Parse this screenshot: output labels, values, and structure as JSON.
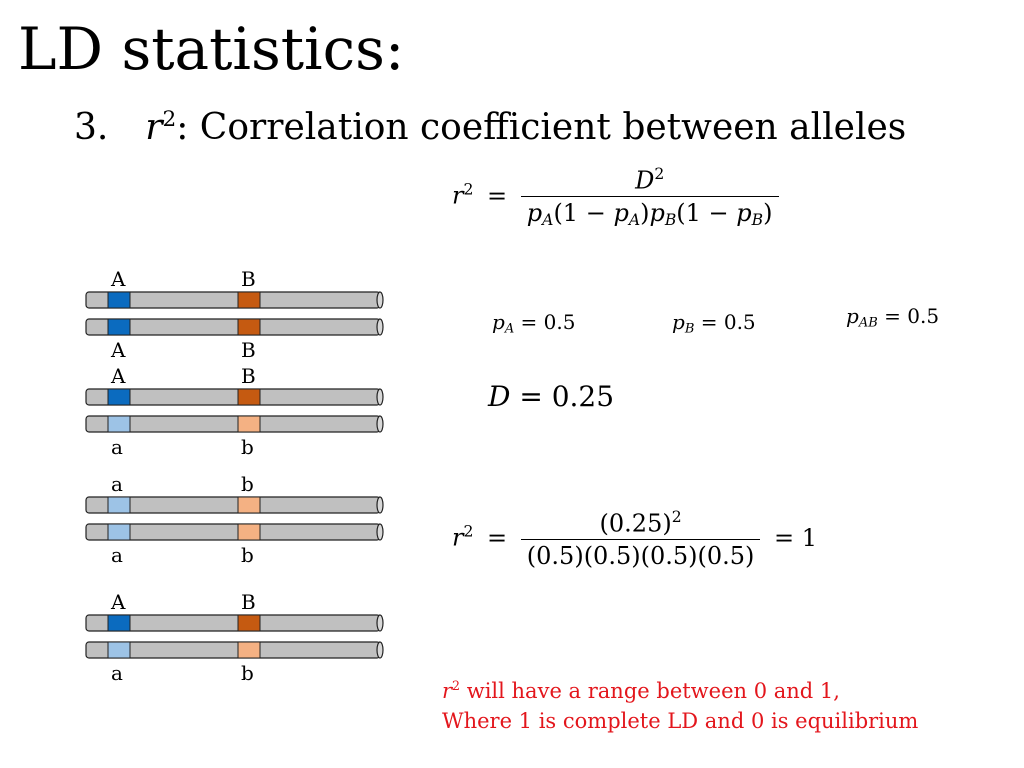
{
  "title": "LD statistics:",
  "subtitle": {
    "number": "3.",
    "symbol": "r",
    "exponent": "2",
    "text": ": Correlation coefficient between alleles"
  },
  "formula": {
    "lhs_var": "r",
    "lhs_exp": "2",
    "equals": "=",
    "num_var": "D",
    "num_exp": "2",
    "den": {
      "p1": "p",
      "s1": "A",
      "t1": "(1 − ",
      "p2": "p",
      "s2": "A",
      "t2": ")",
      "p3": "p",
      "s3": "B",
      "t3": "(1 − ",
      "p4": "p",
      "s4": "B",
      "t4": ")"
    }
  },
  "values": {
    "pA": {
      "var": "p",
      "sub": "A",
      "rest": " = 0.5"
    },
    "pB": {
      "var": "p",
      "sub": "B",
      "rest": " = 0.5"
    },
    "pAB": {
      "var": "p",
      "sub": "AB",
      "rest": " = 0.5"
    },
    "D": {
      "var": "D",
      "rest": " = 0.25"
    }
  },
  "calc": {
    "lhs_var": "r",
    "lhs_exp": "2",
    "equals": "=",
    "num": "(0.25)",
    "num_exp": "2",
    "den": "(0.5)(0.5)(0.5)(0.5)",
    "result": "= 1"
  },
  "note": {
    "symbol": "r",
    "exponent": "2",
    "line1": " will have a range between 0 and 1,",
    "line2": "Where 1 is complete LD and 0 is equilibrium"
  },
  "colors": {
    "dark_blue": "#0b6bbf",
    "light_blue": "#9dc3e6",
    "dark_orange": "#c55a11",
    "light_orange": "#f4b183",
    "chromosome": "#c0c0c0",
    "note": "#e3161c"
  },
  "haplotype_groups": [
    {
      "top_labels": [
        "A",
        "B"
      ],
      "bottom_labels": [
        "A",
        "B"
      ],
      "chrom1": [
        "A",
        "B"
      ],
      "chrom2": [
        "A",
        "B"
      ]
    },
    {
      "top_labels": [
        "A",
        "B"
      ],
      "bottom_labels": [
        "a",
        "b"
      ],
      "chrom1": [
        "A",
        "B"
      ],
      "chrom2": [
        "a",
        "b"
      ]
    },
    {
      "top_labels": [
        "a",
        "b"
      ],
      "bottom_labels": [
        "a",
        "b"
      ],
      "chrom1": [
        "a",
        "b"
      ],
      "chrom2": [
        "a",
        "b"
      ]
    },
    {
      "top_labels": [
        "A",
        "B"
      ],
      "bottom_labels": [
        "a",
        "b"
      ],
      "chrom1": [
        "A",
        "B"
      ],
      "chrom2": [
        "a",
        "b"
      ]
    }
  ]
}
